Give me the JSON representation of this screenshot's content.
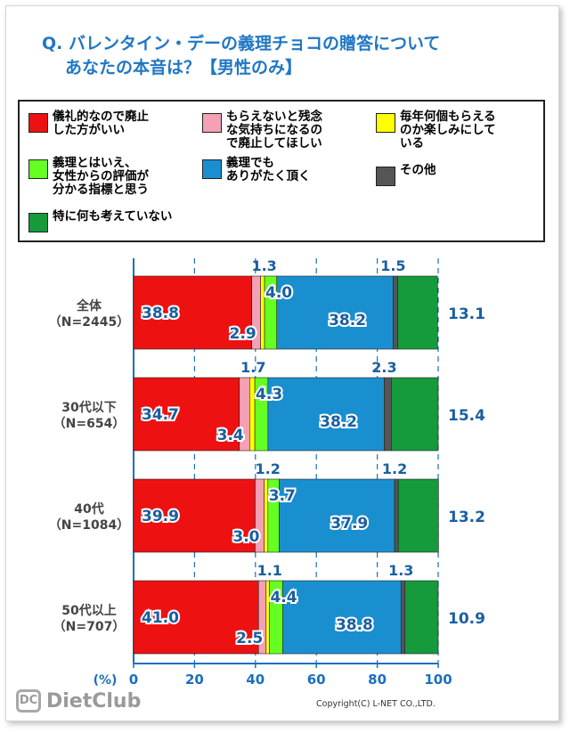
{
  "title": {
    "line1": "Q. バレンタイン・デーの義理チョコの贈答について",
    "line2": "あなたの本音は？【男性のみ】"
  },
  "legend": [
    {
      "label": "儀礼的なので廃止\nした方がいい",
      "color": "#ee1111"
    },
    {
      "label": "もらえないと残念\nな気持ちになるの\nで廃止してほしい",
      "color": "#f4a0b5"
    },
    {
      "label": "毎年何個もらえる\nのか楽しみにして\nいる",
      "color": "#ffff00"
    },
    {
      "label": "義理とはいえ、\n女性からの評価が\n分かる指標と思う",
      "color": "#66ff22"
    },
    {
      "label": "義理でも\nありがたく頂く",
      "color": "#1a8fd0"
    },
    {
      "label": "その他",
      "color": "#555555"
    },
    {
      "label": "特に何も考えていない",
      "color": "#159a3c"
    }
  ],
  "chart_data": {
    "type": "bar",
    "orientation": "horizontal",
    "stacked": true,
    "xlabel": "(%)",
    "xlim": [
      0,
      100
    ],
    "xticks": [
      0,
      20,
      40,
      60,
      80,
      100
    ],
    "grid": true,
    "categories": [
      {
        "name": "全体",
        "n": "（N=2445）"
      },
      {
        "name": "30代以下",
        "n": "（N=654）"
      },
      {
        "name": "40代",
        "n": "（N=1084）"
      },
      {
        "name": "50代以上",
        "n": "（N=707）"
      }
    ],
    "series": [
      {
        "name": "儀礼的なので廃止した方がいい",
        "color": "#ee1111",
        "values": [
          38.8,
          34.7,
          39.9,
          41.0
        ]
      },
      {
        "name": "もらえないと残念な気持ちになるので廃止してほしい",
        "color": "#f4a0b5",
        "values": [
          2.9,
          3.4,
          3.0,
          2.5
        ]
      },
      {
        "name": "毎年何個もらえるのか楽しみにしている",
        "color": "#ffff00",
        "values": [
          1.3,
          1.7,
          1.2,
          1.1
        ]
      },
      {
        "name": "義理とはいえ、女性からの評価が分かる指標と思う",
        "color": "#66ff22",
        "values": [
          4.0,
          4.3,
          3.7,
          4.4
        ]
      },
      {
        "name": "義理でもありがたく頂く",
        "color": "#1a8fd0",
        "values": [
          38.2,
          38.2,
          37.9,
          38.8
        ]
      },
      {
        "name": "その他",
        "color": "#555555",
        "values": [
          1.5,
          2.3,
          1.2,
          1.3
        ]
      },
      {
        "name": "特に何も考えていない",
        "color": "#159a3c",
        "values": [
          13.1,
          15.4,
          13.2,
          10.9
        ]
      }
    ],
    "value_labels": [
      [
        "38.8",
        "2.9",
        "1.3",
        "4.0",
        "38.2",
        "1.5",
        "13.1"
      ],
      [
        "34.7",
        "3.4",
        "1.7",
        "4.3",
        "38.2",
        "2.3",
        "15.4"
      ],
      [
        "39.9",
        "3.0",
        "1.2",
        "3.7",
        "37.9",
        "1.2",
        "13.2"
      ],
      [
        "41.0",
        "2.5",
        "1.1",
        "4.4",
        "38.8",
        "1.3",
        "10.9"
      ]
    ]
  },
  "footer": {
    "logo_text": "DietClub",
    "logo_icon": "DC",
    "copyright": "Copyright(C) L-NET CO.,LTD."
  }
}
